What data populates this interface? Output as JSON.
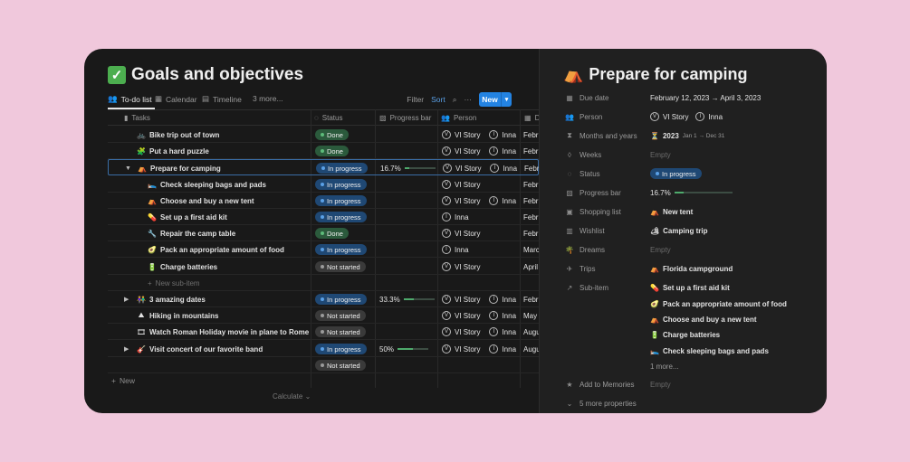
{
  "database": {
    "title": "Goals and objectives",
    "title_icon": "check-mark-icon",
    "tabs": [
      {
        "label": "To-do list",
        "icon": "people-icon"
      },
      {
        "label": "Calendar",
        "icon": "calendar-icon"
      },
      {
        "label": "Timeline",
        "icon": "timeline-icon"
      }
    ],
    "more_views": "3 more...",
    "toolbar": {
      "filter": "Filter",
      "sort": "Sort",
      "new": "New"
    },
    "columns": {
      "tasks": "Tasks",
      "status": "Status",
      "progress": "Progress bar",
      "person": "Person",
      "date_initial": "D"
    },
    "rows": [
      {
        "icon": "bike-icon",
        "emoji": "🚲",
        "name": "Bike trip out of town",
        "status": "Done",
        "progress": "",
        "persons": [
          "VI Story",
          "Inna"
        ],
        "date": "Febr"
      },
      {
        "icon": "puzzle-icon",
        "emoji": "🧩",
        "name": "Put a hard puzzle",
        "status": "Done",
        "progress": "",
        "persons": [
          "VI Story",
          "Inna"
        ],
        "date": "Febr"
      },
      {
        "icon": "tent-icon",
        "emoji": "⛺",
        "name": "Prepare for camping",
        "status": "In progress",
        "progress": "16.7%",
        "progress_value": 0.167,
        "persons": [
          "VI Story",
          "Inna"
        ],
        "date": "Febr",
        "toggle": "▼"
      },
      {
        "icon": "sleeping-bag-icon",
        "emoji": "🛌",
        "name": "Check sleeping bags and pads",
        "status": "In progress",
        "progress": "",
        "persons": [
          "VI Story"
        ],
        "date": "Febr",
        "sub": true
      },
      {
        "icon": "tent-icon",
        "emoji": "⛺",
        "name": "Choose and buy a new tent",
        "status": "In progress",
        "progress": "",
        "persons": [
          "VI Story",
          "Inna"
        ],
        "date": "Febr",
        "sub": true
      },
      {
        "icon": "pill-icon",
        "emoji": "💊",
        "name": "Set up a first aid kit",
        "status": "In progress",
        "progress": "",
        "persons": [
          "Inna"
        ],
        "date": "Febr",
        "sub": true
      },
      {
        "icon": "wrench-icon",
        "emoji": "🔧",
        "name": "Repair the camp table",
        "status": "Done",
        "progress": "",
        "persons": [
          "VI Story"
        ],
        "date": "Febr",
        "sub": true
      },
      {
        "icon": "food-icon",
        "emoji": "🥑",
        "name": "Pack an appropriate amount of food",
        "status": "In progress",
        "progress": "",
        "persons": [
          "Inna"
        ],
        "date": "Marc",
        "sub": true
      },
      {
        "icon": "battery-icon",
        "emoji": "🔋",
        "name": "Charge batteries",
        "status": "Not started",
        "progress": "",
        "persons": [
          "VI Story"
        ],
        "date": "April",
        "sub": true
      }
    ],
    "new_subitem": "New sub-item",
    "rows2": [
      {
        "icon": "couple-icon",
        "emoji": "👫",
        "name": "3 amazing dates",
        "status": "In progress",
        "progress": "33.3%",
        "progress_value": 0.333,
        "persons": [
          "VI Story",
          "Inna"
        ],
        "date": "Febr",
        "toggle": "▶"
      },
      {
        "icon": "mountain-icon",
        "emoji": "⛰",
        "name": "Hiking in mountains",
        "status": "Not started",
        "progress": "",
        "persons": [
          "VI Story",
          "Inna"
        ],
        "date": "May"
      },
      {
        "icon": "movie-icon",
        "emoji": "🎞",
        "name": "Watch Roman Holiday movie in plane to Rome",
        "status": "Not started",
        "progress": "",
        "persons": [
          "VI Story",
          "Inna"
        ],
        "date": "Augu"
      },
      {
        "icon": "guitar-icon",
        "emoji": "🎸",
        "name": "Visit concert of our favorite band",
        "status": "In progress",
        "progress": "50%",
        "progress_value": 0.5,
        "persons": [
          "VI Story",
          "Inna"
        ],
        "date": "Augu",
        "toggle": "▶"
      },
      {
        "icon": "",
        "emoji": "",
        "name": "",
        "status": "Not started",
        "progress": "",
        "persons": [],
        "date": ""
      }
    ],
    "add_new": "New",
    "calculate": "Calculate"
  },
  "detail": {
    "title": "Prepare for camping",
    "title_icon": "tent-icon",
    "properties": {
      "due_date": {
        "label": "Due date",
        "value": "February 12, 2023 → April 3, 2023"
      },
      "person": {
        "label": "Person",
        "values": [
          "VI Story",
          "Inna"
        ]
      },
      "months": {
        "label": "Months and years",
        "value": "2023",
        "range": "Jan 1 → Dec 31"
      },
      "weeks": {
        "label": "Weeks",
        "value": "Empty"
      },
      "status": {
        "label": "Status",
        "value": "In progress"
      },
      "progress": {
        "label": "Progress bar",
        "value": "16.7%",
        "progress_value": 0.167
      },
      "shopping": {
        "label": "Shopping list",
        "value": "New tent"
      },
      "wishlist": {
        "label": "Wishlist",
        "value": "Camping trip"
      },
      "dreams": {
        "label": "Dreams",
        "value": "Empty"
      },
      "trips": {
        "label": "Trips",
        "value": "Florida campground"
      },
      "subitem": {
        "label": "Sub-item",
        "values": [
          "Set up a first aid kit",
          "Pack an appropriate amount of food",
          "Choose and buy a new tent",
          "Charge batteries",
          "Check sleeping bags and pads"
        ],
        "more": "1 more..."
      },
      "memories": {
        "label": "Add to Memories",
        "value": "Empty"
      },
      "more_props": "5 more properties"
    }
  }
}
